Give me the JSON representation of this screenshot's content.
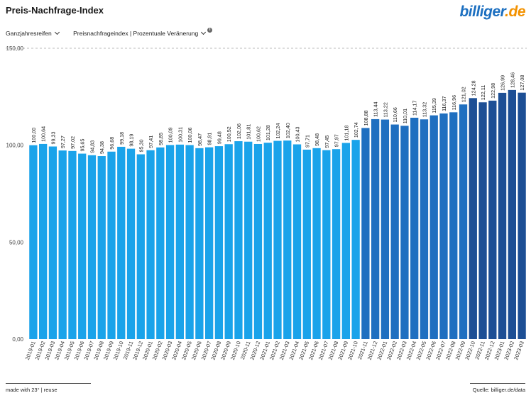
{
  "header": {
    "title": "Preis-Nachfrage-Index",
    "logo_main": "billiger",
    "logo_accent": ".de"
  },
  "filters": {
    "category": "Ganzjahresreifen",
    "metric": "Preisnachfrageindex | Prozentuale Veränerung",
    "info_icon": "info-icon"
  },
  "footer": {
    "made_with": "made with 23° | reuse",
    "source": "Quelle: billiger.de/data"
  },
  "chart_data": {
    "type": "bar",
    "title": "",
    "xlabel": "",
    "ylabel": "",
    "ylim": [
      0,
      150
    ],
    "yticks": [
      "0,00",
      "50,00",
      "100,00",
      "150,00"
    ],
    "grid": false,
    "colors": {
      "light": "#1aa3ea",
      "dark": "#1f6fc0",
      "darkest": "#1d4f95"
    },
    "categories": [
      "2019-01",
      "2019-02",
      "2019-03",
      "2019-04",
      "2019-05",
      "2019-06",
      "2019-07",
      "2019-08",
      "2019-09",
      "2019-10",
      "2019-11",
      "2019-12",
      "2020-01",
      "2020-02",
      "2020-03",
      "2020-04",
      "2020-05",
      "2020-06",
      "2020-07",
      "2020-08",
      "2020-09",
      "2020-10",
      "2020-11",
      "2020-12",
      "2021-01",
      "2021-02",
      "2021-03",
      "2021-04",
      "2021-05",
      "2021-06",
      "2021-07",
      "2021-08",
      "2021-09",
      "2021-10",
      "2021-11",
      "2021-12",
      "2022-01",
      "2022-02",
      "2022-03",
      "2022-04",
      "2022-05",
      "2022-06",
      "2022-07",
      "2022-08",
      "2022-09",
      "2022-10",
      "2022-11",
      "2022-12",
      "2023-01",
      "2023-02",
      "2023-03"
    ],
    "values": [
      100.0,
      100.64,
      99.33,
      97.27,
      97.02,
      95.65,
      94.83,
      94.38,
      96.68,
      99.18,
      98.19,
      95.3,
      97.41,
      98.85,
      100.09,
      100.31,
      100.06,
      98.47,
      98.91,
      99.48,
      100.52,
      102.06,
      101.81,
      100.62,
      101.28,
      102.24,
      102.4,
      100.43,
      97.71,
      98.48,
      97.45,
      97.97,
      101.18,
      102.74,
      108.88,
      113.44,
      113.22,
      110.66,
      110.01,
      114.17,
      113.32,
      115.39,
      116.37,
      116.96,
      121.02,
      124.28,
      122.11,
      122.98,
      126.99,
      128.46,
      127.08
    ],
    "labels": [
      "100,00",
      "100,64",
      "99,33",
      "97,27",
      "97,02",
      "95,65",
      "94,83",
      "94,38",
      "96,68",
      "99,18",
      "98,19",
      "95,30",
      "97,41",
      "98,85",
      "100,09",
      "100,31",
      "100,06",
      "98,47",
      "98,91",
      "99,48",
      "100,52",
      "102,06",
      "101,81",
      "100,62",
      "101,28",
      "102,24",
      "102,40",
      "100,43",
      "97,71",
      "98,48",
      "97,45",
      "97,97",
      "101,18",
      "102,74",
      "108,88",
      "113,44",
      "113,22",
      "110,66",
      "110,01",
      "114,17",
      "113,32",
      "115,39",
      "116,37",
      "116,96",
      "121,02",
      "124,28",
      "122,11",
      "122,98",
      "126,99",
      "128,46",
      "127,08"
    ]
  }
}
